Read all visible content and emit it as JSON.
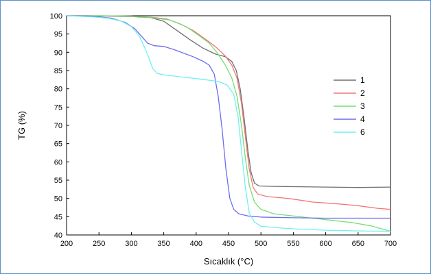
{
  "chart_data": {
    "type": "line",
    "title": "",
    "xlabel": "Sıcaklık (°C)",
    "ylabel": "TG (%)",
    "xlim": [
      200,
      700
    ],
    "ylim": [
      40,
      100
    ],
    "xticks": [
      200,
      250,
      300,
      350,
      400,
      450,
      500,
      550,
      600,
      650,
      700
    ],
    "yticks": [
      40,
      45,
      50,
      55,
      60,
      65,
      70,
      75,
      80,
      85,
      90,
      95,
      100
    ],
    "grid": false,
    "legend_position": "right",
    "series": [
      {
        "name": "1",
        "color": "#6e6e6e",
        "points": [
          [
            200,
            100
          ],
          [
            230,
            100
          ],
          [
            260,
            99.9
          ],
          [
            300,
            99.8
          ],
          [
            330,
            99.5
          ],
          [
            350,
            98.5
          ],
          [
            370,
            96
          ],
          [
            390,
            93.5
          ],
          [
            410,
            91.2
          ],
          [
            430,
            89.5
          ],
          [
            445,
            88.8
          ],
          [
            455,
            87.5
          ],
          [
            462,
            85
          ],
          [
            468,
            80
          ],
          [
            474,
            72
          ],
          [
            480,
            63
          ],
          [
            485,
            57
          ],
          [
            490,
            54.2
          ],
          [
            497,
            53.4
          ],
          [
            520,
            53.3
          ],
          [
            560,
            53.2
          ],
          [
            600,
            53.1
          ],
          [
            650,
            53.0
          ],
          [
            700,
            53.1
          ]
        ]
      },
      {
        "name": "2",
        "color": "#f07575",
        "points": [
          [
            200,
            100
          ],
          [
            250,
            100
          ],
          [
            300,
            99.9
          ],
          [
            330,
            99.6
          ],
          [
            355,
            99.1
          ],
          [
            375,
            97.8
          ],
          [
            395,
            96
          ],
          [
            415,
            93.5
          ],
          [
            430,
            91.5
          ],
          [
            445,
            89
          ],
          [
            455,
            86.5
          ],
          [
            463,
            83
          ],
          [
            470,
            76
          ],
          [
            476,
            67
          ],
          [
            482,
            58
          ],
          [
            488,
            53
          ],
          [
            495,
            51.2
          ],
          [
            510,
            50.5
          ],
          [
            530,
            50.2
          ],
          [
            550,
            49.8
          ],
          [
            580,
            49
          ],
          [
            620,
            48.5
          ],
          [
            650,
            48
          ],
          [
            680,
            47.3
          ],
          [
            700,
            47
          ]
        ]
      },
      {
        "name": "3",
        "color": "#72e072",
        "points": [
          [
            200,
            100
          ],
          [
            260,
            100
          ],
          [
            300,
            99.9
          ],
          [
            330,
            99.5
          ],
          [
            360,
            98.8
          ],
          [
            385,
            97
          ],
          [
            405,
            94.5
          ],
          [
            420,
            92.5
          ],
          [
            432,
            90
          ],
          [
            445,
            86.5
          ],
          [
            455,
            83
          ],
          [
            463,
            78
          ],
          [
            470,
            70
          ],
          [
            476,
            61
          ],
          [
            482,
            53.5
          ],
          [
            490,
            49
          ],
          [
            500,
            47
          ],
          [
            520,
            45.8
          ],
          [
            550,
            45.2
          ],
          [
            580,
            44.6
          ],
          [
            610,
            44
          ],
          [
            640,
            43.4
          ],
          [
            670,
            42.5
          ],
          [
            690,
            41.5
          ],
          [
            700,
            41
          ]
        ]
      },
      {
        "name": "4",
        "color": "#6b6bf0",
        "points": [
          [
            200,
            100
          ],
          [
            240,
            99.9
          ],
          [
            270,
            99.3
          ],
          [
            290,
            98.2
          ],
          [
            305,
            96.5
          ],
          [
            315,
            94.5
          ],
          [
            325,
            92.5
          ],
          [
            335,
            91.8
          ],
          [
            350,
            91.6
          ],
          [
            365,
            90.8
          ],
          [
            380,
            89.8
          ],
          [
            395,
            88.8
          ],
          [
            410,
            87.6
          ],
          [
            420,
            86.5
          ],
          [
            428,
            84
          ],
          [
            434,
            78
          ],
          [
            440,
            69
          ],
          [
            446,
            58
          ],
          [
            452,
            50
          ],
          [
            458,
            47
          ],
          [
            466,
            45.8
          ],
          [
            480,
            45.2
          ],
          [
            500,
            44.9
          ],
          [
            550,
            44.7
          ],
          [
            600,
            44.6
          ],
          [
            650,
            44.6
          ],
          [
            700,
            44.6
          ]
        ]
      },
      {
        "name": "6",
        "color": "#6ff0f0",
        "points": [
          [
            200,
            100
          ],
          [
            240,
            99.7
          ],
          [
            265,
            99.3
          ],
          [
            285,
            98.5
          ],
          [
            300,
            97
          ],
          [
            312,
            94.5
          ],
          [
            320,
            91.5
          ],
          [
            327,
            88.5
          ],
          [
            333,
            85.5
          ],
          [
            340,
            84.2
          ],
          [
            355,
            83.7
          ],
          [
            380,
            83.2
          ],
          [
            410,
            82.6
          ],
          [
            435,
            82
          ],
          [
            448,
            81
          ],
          [
            458,
            78.5
          ],
          [
            465,
            72
          ],
          [
            470,
            63
          ],
          [
            476,
            53
          ],
          [
            482,
            46
          ],
          [
            490,
            43.5
          ],
          [
            500,
            42.4
          ],
          [
            530,
            41.9
          ],
          [
            560,
            41.6
          ],
          [
            600,
            41.3
          ],
          [
            650,
            41.1
          ],
          [
            700,
            41
          ]
        ]
      }
    ]
  }
}
